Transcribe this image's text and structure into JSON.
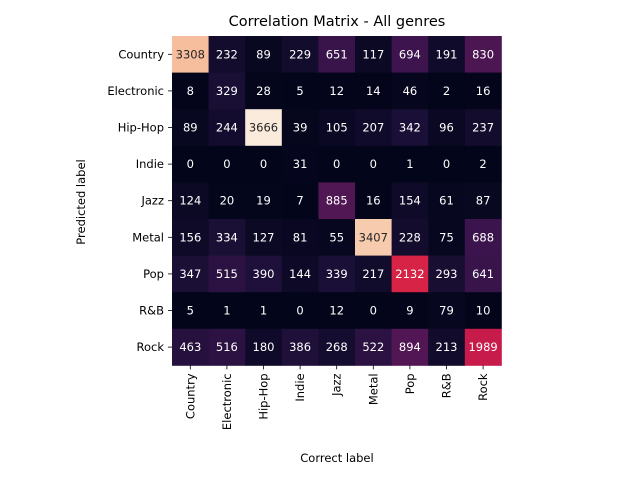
{
  "chart_data": {
    "type": "heatmap",
    "title": "Correlation Matrix - All genres",
    "xlabel": "Correct label",
    "ylabel": "Predicted label",
    "x_categories": [
      "Country",
      "Electronic",
      "Hip-Hop",
      "Indie",
      "Jazz",
      "Metal",
      "Pop",
      "R&B",
      "Rock"
    ],
    "y_categories": [
      "Country",
      "Electronic",
      "Hip-Hop",
      "Indie",
      "Jazz",
      "Metal",
      "Pop",
      "R&B",
      "Rock"
    ],
    "values": [
      [
        3308,
        232,
        89,
        229,
        651,
        117,
        694,
        191,
        830
      ],
      [
        8,
        329,
        28,
        5,
        12,
        14,
        46,
        2,
        16
      ],
      [
        89,
        244,
        3666,
        39,
        105,
        207,
        342,
        96,
        237
      ],
      [
        0,
        0,
        0,
        31,
        0,
        0,
        1,
        0,
        2
      ],
      [
        124,
        20,
        19,
        7,
        885,
        16,
        154,
        61,
        87
      ],
      [
        156,
        334,
        127,
        81,
        55,
        3407,
        228,
        75,
        688
      ],
      [
        347,
        515,
        390,
        144,
        339,
        217,
        2132,
        293,
        641
      ],
      [
        5,
        1,
        1,
        0,
        12,
        0,
        9,
        79,
        10
      ],
      [
        463,
        516,
        180,
        386,
        268,
        522,
        894,
        213,
        1989
      ]
    ],
    "colormap": "rocket",
    "color_range": [
      0,
      3666
    ],
    "grid": false,
    "colorbar": false
  }
}
